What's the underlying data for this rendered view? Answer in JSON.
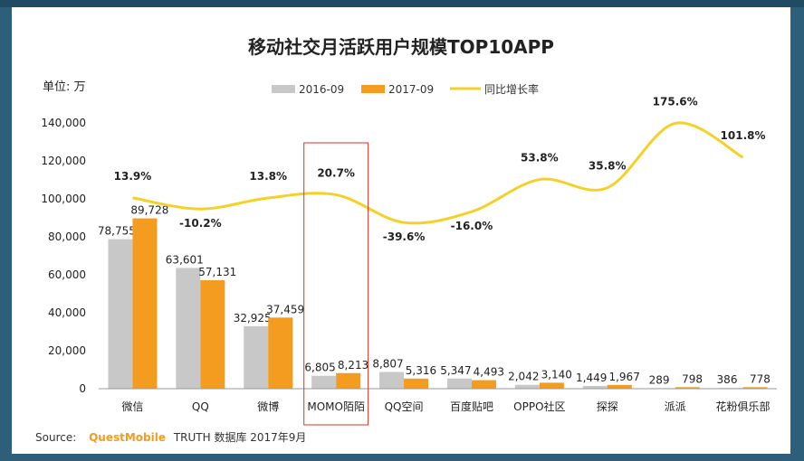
{
  "chart_data": {
    "type": "bar",
    "title": "移动社交月活跃用户规模TOP10APP",
    "unit_label": "单位: 万",
    "categories": [
      "微信",
      "QQ",
      "微博",
      "MOMO陌陌",
      "QQ空间",
      "百度贴吧",
      "OPPO社区",
      "探探",
      "派派",
      "花粉俱乐部"
    ],
    "series": [
      {
        "name": "2016-09",
        "color": "#c8c8c8",
        "values": [
          78755,
          63601,
          32925,
          6805,
          8807,
          5347,
          2042,
          1449,
          289,
          386
        ],
        "labels": [
          "78,755",
          "63,601",
          "32,925",
          "6,805",
          "8,807",
          "5,347",
          "2,042",
          "1,449",
          "289",
          "386"
        ]
      },
      {
        "name": "2017-09",
        "color": "#f39c1f",
        "values": [
          89728,
          57131,
          37459,
          8213,
          5316,
          4493,
          3140,
          1967,
          798,
          778
        ],
        "labels": [
          "89,728",
          "57,131",
          "37,459",
          "8,213",
          "5,316",
          "4,493",
          "3,140",
          "1,967",
          "798",
          "778"
        ]
      }
    ],
    "line_series": {
      "name": "同比增长率",
      "color": "#f5d128",
      "values": [
        13.9,
        -10.2,
        13.8,
        20.7,
        -39.6,
        -16.0,
        53.8,
        35.8,
        175.6,
        101.8
      ],
      "labels": [
        "13.9%",
        "-10.2%",
        "13.8%",
        "20.7%",
        "-39.6%",
        "-16.0%",
        "53.8%",
        "35.8%",
        "175.6%",
        "101.8%"
      ]
    },
    "ylim": [
      0,
      140000
    ],
    "yticks": [
      0,
      20000,
      40000,
      60000,
      80000,
      100000,
      120000,
      140000
    ],
    "ytick_labels": [
      "0",
      "20,000",
      "40,000",
      "60,000",
      "80,000",
      "100,000",
      "120,000",
      "140,000"
    ],
    "highlight_category": "MOMO陌陌",
    "highlight_color": "#d9322a",
    "legend_position": "top"
  },
  "source": {
    "prefix": "Source:",
    "brand": "QuestMobile",
    "rest": "TRUTH 数据库 2017年9月",
    "brand_color": "#f39c1f"
  }
}
